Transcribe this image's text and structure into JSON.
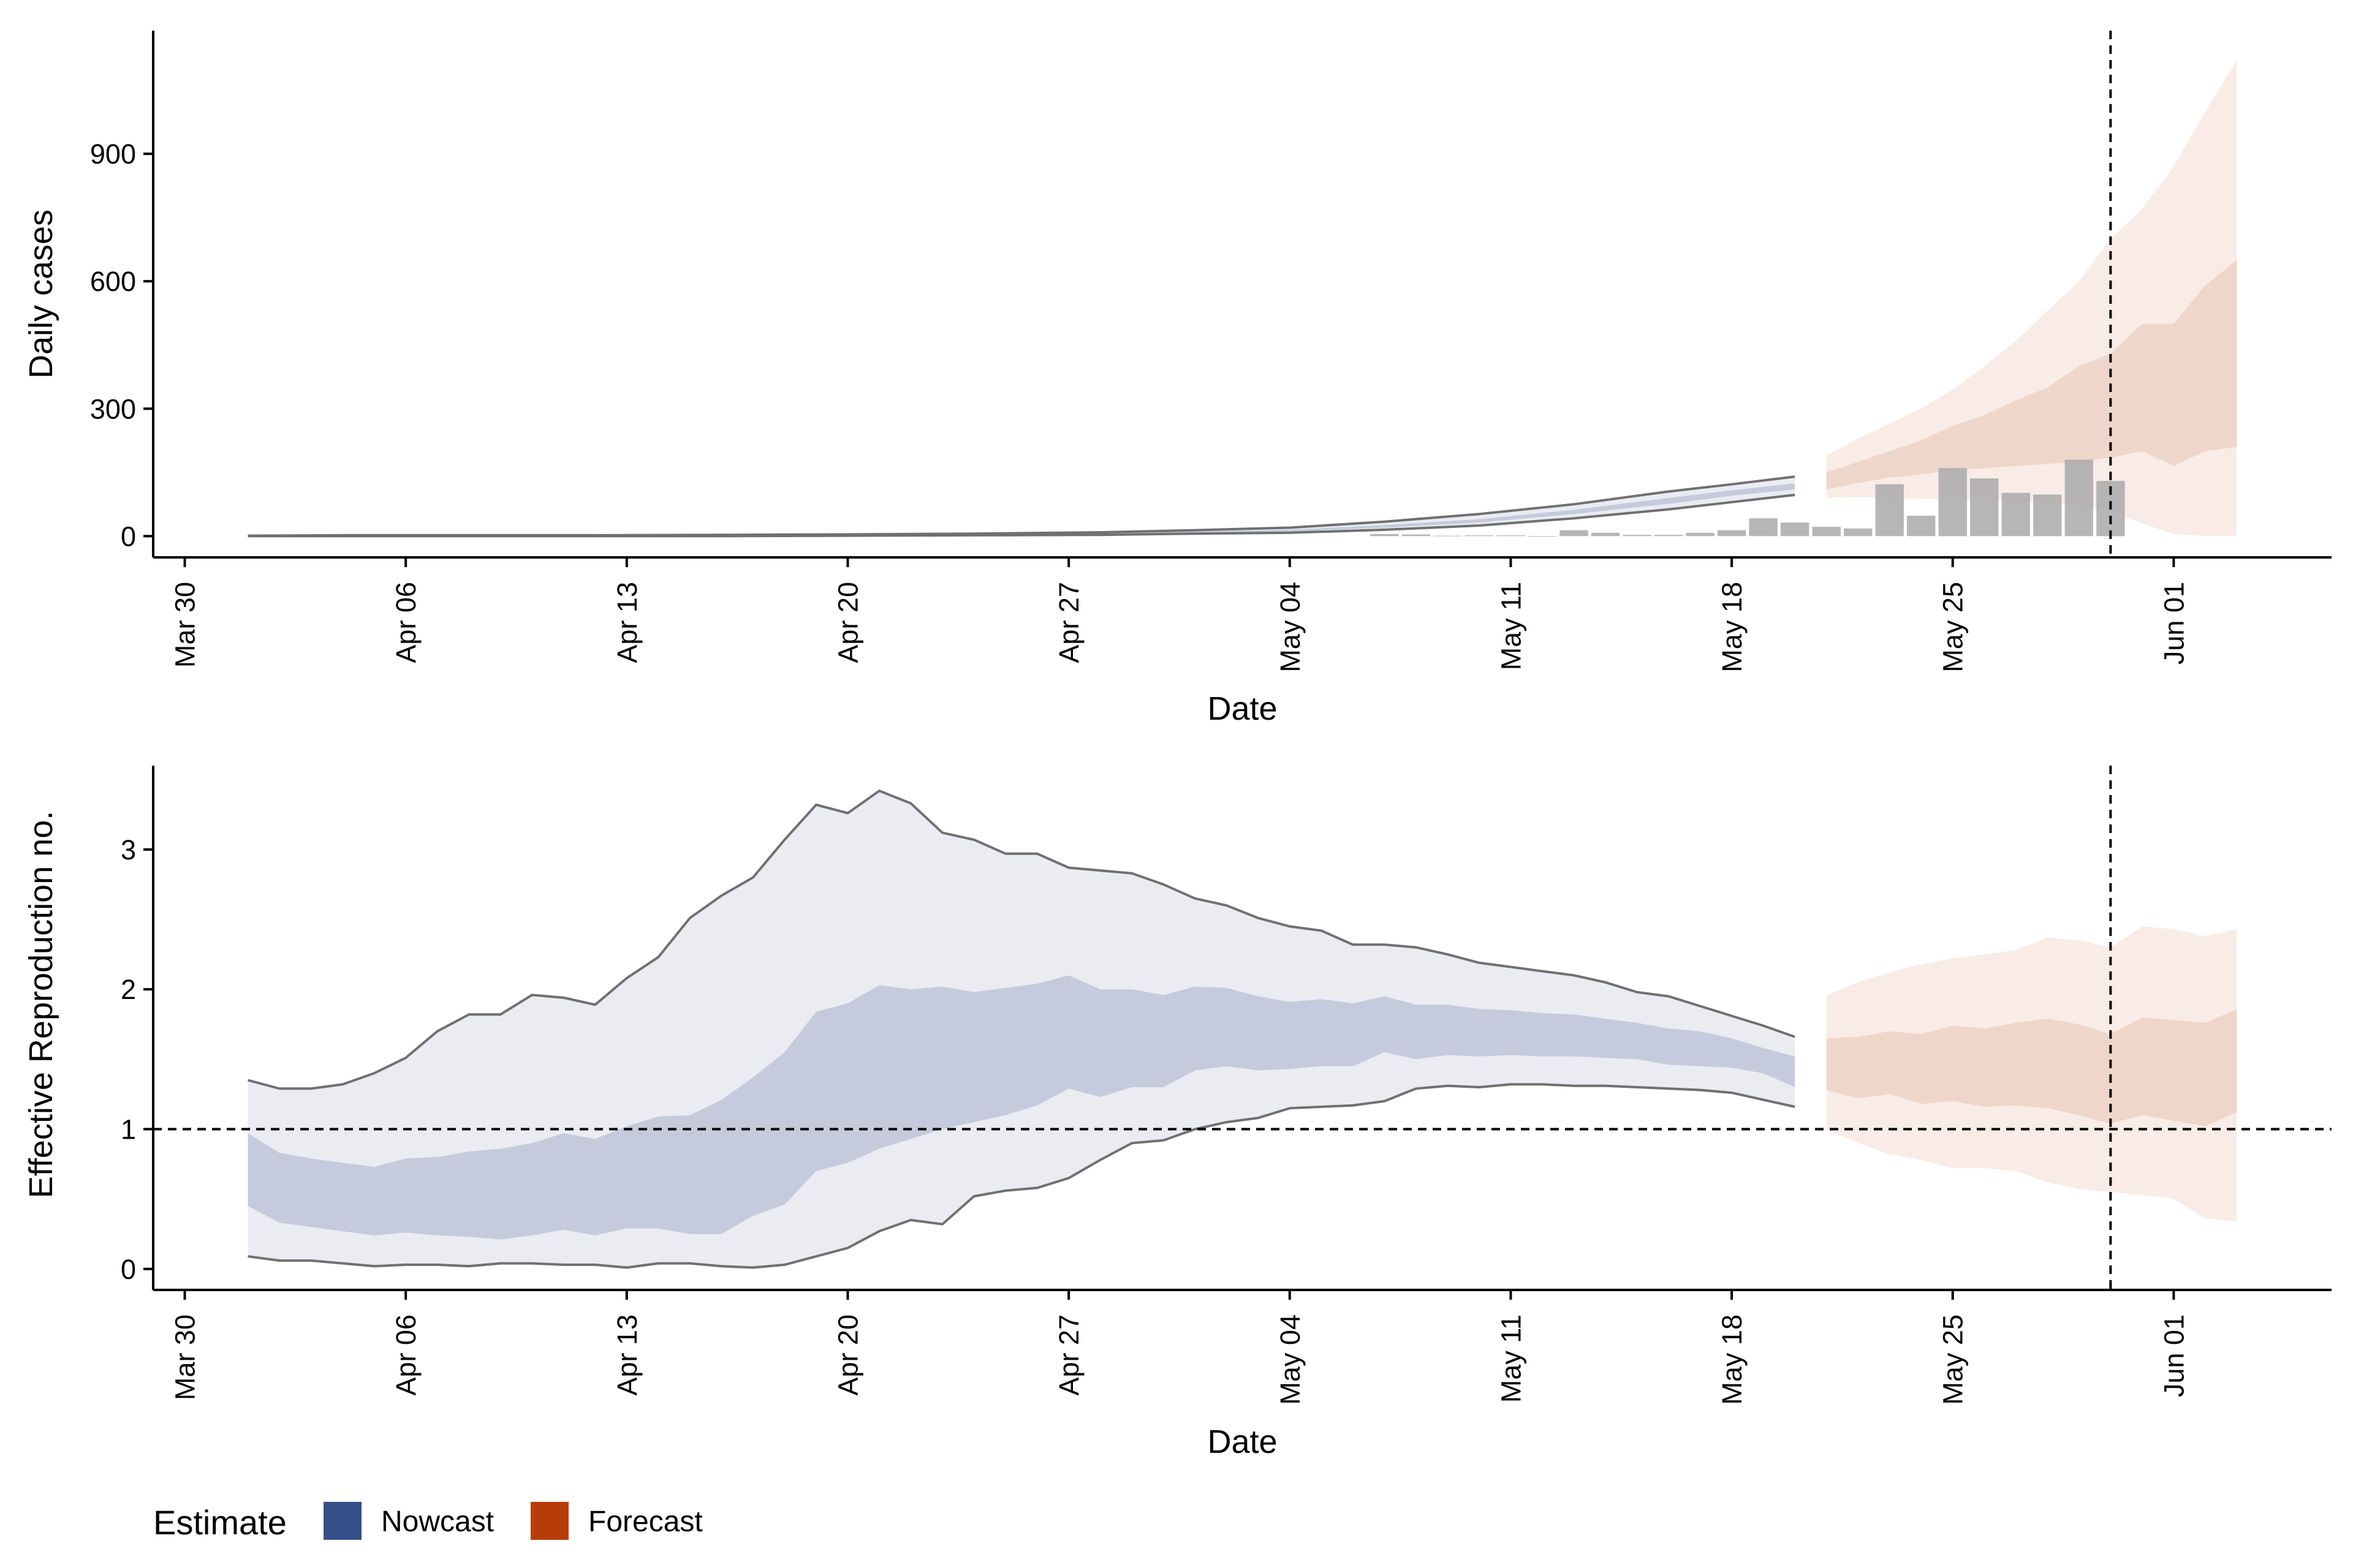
{
  "legend": {
    "title": "Estimate",
    "items": [
      {
        "label": "Nowcast",
        "color": "#34508a"
      },
      {
        "label": "Forecast",
        "color": "#b83c0a"
      }
    ]
  },
  "chart_data": [
    {
      "type": "area",
      "panel": "cases",
      "xlabel": "Date",
      "ylabel": "Daily cases",
      "x_ticks": [
        "Mar 30",
        "Apr 06",
        "Apr 13",
        "Apr 20",
        "Apr 27",
        "May 04",
        "May 11",
        "May 18",
        "May 25",
        "Jun 01"
      ],
      "x_tick_dates": [
        "2020-03-30",
        "2020-04-06",
        "2020-04-13",
        "2020-04-20",
        "2020-04-27",
        "2020-05-04",
        "2020-05-11",
        "2020-05-18",
        "2020-05-25",
        "2020-06-01"
      ],
      "xlim": [
        "2020-03-29",
        "2020-06-06"
      ],
      "ylim": [
        -50,
        1190
      ],
      "y_ticks": [
        0,
        300,
        600,
        900
      ],
      "vline_date": "2020-05-30",
      "observed_cases": {
        "dates": [
          "2020-05-07",
          "2020-05-08",
          "2020-05-09",
          "2020-05-10",
          "2020-05-11",
          "2020-05-12",
          "2020-05-13",
          "2020-05-14",
          "2020-05-15",
          "2020-05-16",
          "2020-05-17",
          "2020-05-18",
          "2020-05-19",
          "2020-05-20",
          "2020-05-21",
          "2020-05-22",
          "2020-05-23",
          "2020-05-24",
          "2020-05-25",
          "2020-05-26",
          "2020-05-27",
          "2020-05-28",
          "2020-05-29",
          "2020-05-30"
        ],
        "values": [
          5,
          4,
          1,
          2,
          2,
          0,
          14,
          8,
          3,
          3,
          8,
          14,
          42,
          32,
          22,
          18,
          122,
          48,
          160,
          136,
          102,
          98,
          180,
          130
        ]
      },
      "nowcast": {
        "dates": [
          "2020-04-01",
          "2020-04-04",
          "2020-04-08",
          "2020-04-12",
          "2020-04-16",
          "2020-04-20",
          "2020-04-24",
          "2020-04-28",
          "2020-05-01",
          "2020-05-04",
          "2020-05-07",
          "2020-05-10",
          "2020-05-13",
          "2020-05-16",
          "2020-05-18",
          "2020-05-20"
        ],
        "lower90": [
          0,
          0,
          0,
          0,
          0,
          1,
          2,
          3,
          6,
          8,
          15,
          25,
          42,
          63,
          80,
          97
        ],
        "lower50": [
          0,
          0,
          0,
          0,
          1,
          2,
          3,
          5,
          8,
          11,
          20,
          32,
          52,
          76,
          95,
          110
        ],
        "upper50": [
          1,
          1,
          1,
          1,
          2,
          3,
          5,
          7,
          11,
          15,
          26,
          40,
          62,
          90,
          108,
          124
        ],
        "upper90": [
          1,
          2,
          2,
          2,
          3,
          4,
          6,
          9,
          14,
          20,
          34,
          52,
          75,
          105,
          122,
          140
        ]
      },
      "forecast": {
        "dates": [
          "2020-05-21",
          "2020-05-22",
          "2020-05-23",
          "2020-05-24",
          "2020-05-25",
          "2020-05-26",
          "2020-05-27",
          "2020-05-28",
          "2020-05-29",
          "2020-05-30",
          "2020-05-31",
          "2020-06-01",
          "2020-06-02",
          "2020-06-03"
        ],
        "lower90": [
          90,
          92,
          90,
          88,
          86,
          85,
          82,
          78,
          72,
          60,
          30,
          5,
          0,
          0
        ],
        "lower50": [
          110,
          125,
          138,
          145,
          155,
          160,
          165,
          170,
          175,
          185,
          200,
          165,
          200,
          210
        ],
        "upper50": [
          150,
          175,
          200,
          225,
          260,
          285,
          320,
          350,
          400,
          430,
          500,
          500,
          590,
          650
        ],
        "upper90": [
          190,
          230,
          265,
          300,
          345,
          400,
          460,
          530,
          600,
          700,
          770,
          870,
          1000,
          1120
        ]
      }
    },
    {
      "type": "area",
      "panel": "reproduction",
      "xlabel": "Date",
      "ylabel": "Effective Reproduction no.",
      "x_ticks": [
        "Mar 30",
        "Apr 06",
        "Apr 13",
        "Apr 20",
        "Apr 27",
        "May 04",
        "May 11",
        "May 18",
        "May 25",
        "Jun 01"
      ],
      "x_tick_dates": [
        "2020-03-30",
        "2020-04-06",
        "2020-04-13",
        "2020-04-20",
        "2020-04-27",
        "2020-05-04",
        "2020-05-11",
        "2020-05-18",
        "2020-05-25",
        "2020-06-01"
      ],
      "xlim": [
        "2020-03-29",
        "2020-06-06"
      ],
      "ylim": [
        -0.15,
        3.6
      ],
      "y_ticks": [
        0,
        1,
        2,
        3
      ],
      "hline": 1,
      "vline_date": "2020-05-30",
      "nowcast": {
        "dates": [
          "2020-04-01",
          "2020-04-02",
          "2020-04-03",
          "2020-04-04",
          "2020-04-05",
          "2020-04-06",
          "2020-04-07",
          "2020-04-08",
          "2020-04-09",
          "2020-04-10",
          "2020-04-11",
          "2020-04-12",
          "2020-04-13",
          "2020-04-14",
          "2020-04-15",
          "2020-04-16",
          "2020-04-17",
          "2020-04-18",
          "2020-04-19",
          "2020-04-20",
          "2020-04-21",
          "2020-04-22",
          "2020-04-23",
          "2020-04-24",
          "2020-04-25",
          "2020-04-26",
          "2020-04-27",
          "2020-04-28",
          "2020-04-29",
          "2020-04-30",
          "2020-05-01",
          "2020-05-02",
          "2020-05-03",
          "2020-05-04",
          "2020-05-05",
          "2020-05-06",
          "2020-05-07",
          "2020-05-08",
          "2020-05-09",
          "2020-05-10",
          "2020-05-11",
          "2020-05-12",
          "2020-05-13",
          "2020-05-14",
          "2020-05-15",
          "2020-05-16",
          "2020-05-17",
          "2020-05-18",
          "2020-05-19",
          "2020-05-20"
        ],
        "lower90": [
          0.09,
          0.06,
          0.06,
          0.04,
          0.02,
          0.03,
          0.03,
          0.02,
          0.04,
          0.04,
          0.03,
          0.03,
          0.01,
          0.04,
          0.04,
          0.02,
          0.01,
          0.03,
          0.09,
          0.15,
          0.27,
          0.35,
          0.32,
          0.52,
          0.56,
          0.58,
          0.65,
          0.78,
          0.9,
          0.92,
          1.0,
          1.05,
          1.08,
          1.15,
          1.16,
          1.17,
          1.2,
          1.29,
          1.31,
          1.3,
          1.32,
          1.32,
          1.31,
          1.31,
          1.3,
          1.29,
          1.28,
          1.26,
          1.21,
          1.16
        ],
        "lower50": [
          0.45,
          0.33,
          0.3,
          0.27,
          0.24,
          0.26,
          0.24,
          0.23,
          0.21,
          0.24,
          0.28,
          0.24,
          0.29,
          0.29,
          0.25,
          0.25,
          0.38,
          0.46,
          0.7,
          0.76,
          0.86,
          0.93,
          1.0,
          1.05,
          1.1,
          1.17,
          1.29,
          1.23,
          1.3,
          1.3,
          1.42,
          1.45,
          1.42,
          1.43,
          1.45,
          1.45,
          1.55,
          1.5,
          1.53,
          1.52,
          1.53,
          1.52,
          1.52,
          1.51,
          1.5,
          1.46,
          1.45,
          1.44,
          1.4,
          1.3
        ],
        "upper50": [
          0.97,
          0.83,
          0.79,
          0.76,
          0.73,
          0.79,
          0.8,
          0.84,
          0.86,
          0.9,
          0.97,
          0.93,
          1.02,
          1.09,
          1.1,
          1.21,
          1.37,
          1.55,
          1.84,
          1.9,
          2.03,
          2.0,
          2.02,
          1.98,
          2.01,
          2.04,
          2.1,
          2.0,
          2.0,
          1.96,
          2.02,
          2.01,
          1.95,
          1.91,
          1.93,
          1.9,
          1.95,
          1.89,
          1.89,
          1.86,
          1.85,
          1.83,
          1.82,
          1.79,
          1.76,
          1.72,
          1.7,
          1.65,
          1.58,
          1.52
        ],
        "upper90": [
          1.35,
          1.29,
          1.29,
          1.32,
          1.4,
          1.51,
          1.7,
          1.82,
          1.82,
          1.96,
          1.94,
          1.89,
          2.08,
          2.23,
          2.51,
          2.67,
          2.8,
          3.07,
          3.32,
          3.26,
          3.42,
          3.33,
          3.12,
          3.07,
          2.97,
          2.97,
          2.87,
          2.85,
          2.83,
          2.75,
          2.65,
          2.6,
          2.51,
          2.45,
          2.42,
          2.32,
          2.32,
          2.3,
          2.25,
          2.19,
          2.16,
          2.13,
          2.1,
          2.05,
          1.98,
          1.95,
          1.88,
          1.81,
          1.74,
          1.66
        ]
      },
      "forecast": {
        "dates": [
          "2020-05-21",
          "2020-05-22",
          "2020-05-23",
          "2020-05-24",
          "2020-05-25",
          "2020-05-26",
          "2020-05-27",
          "2020-05-28",
          "2020-05-29",
          "2020-05-30",
          "2020-05-31",
          "2020-06-01",
          "2020-06-02",
          "2020-06-03"
        ],
        "lower90": [
          1.0,
          0.9,
          0.82,
          0.78,
          0.72,
          0.72,
          0.7,
          0.62,
          0.57,
          0.55,
          0.53,
          0.5,
          0.36,
          0.34
        ],
        "lower50": [
          1.28,
          1.22,
          1.25,
          1.18,
          1.2,
          1.16,
          1.17,
          1.15,
          1.1,
          1.04,
          1.1,
          1.06,
          1.02,
          1.12
        ],
        "upper50": [
          1.65,
          1.66,
          1.7,
          1.68,
          1.74,
          1.72,
          1.76,
          1.79,
          1.75,
          1.68,
          1.8,
          1.78,
          1.76,
          1.86
        ],
        "upper90": [
          1.96,
          2.05,
          2.12,
          2.18,
          2.22,
          2.25,
          2.28,
          2.37,
          2.35,
          2.3,
          2.45,
          2.43,
          2.38,
          2.43
        ]
      }
    }
  ]
}
